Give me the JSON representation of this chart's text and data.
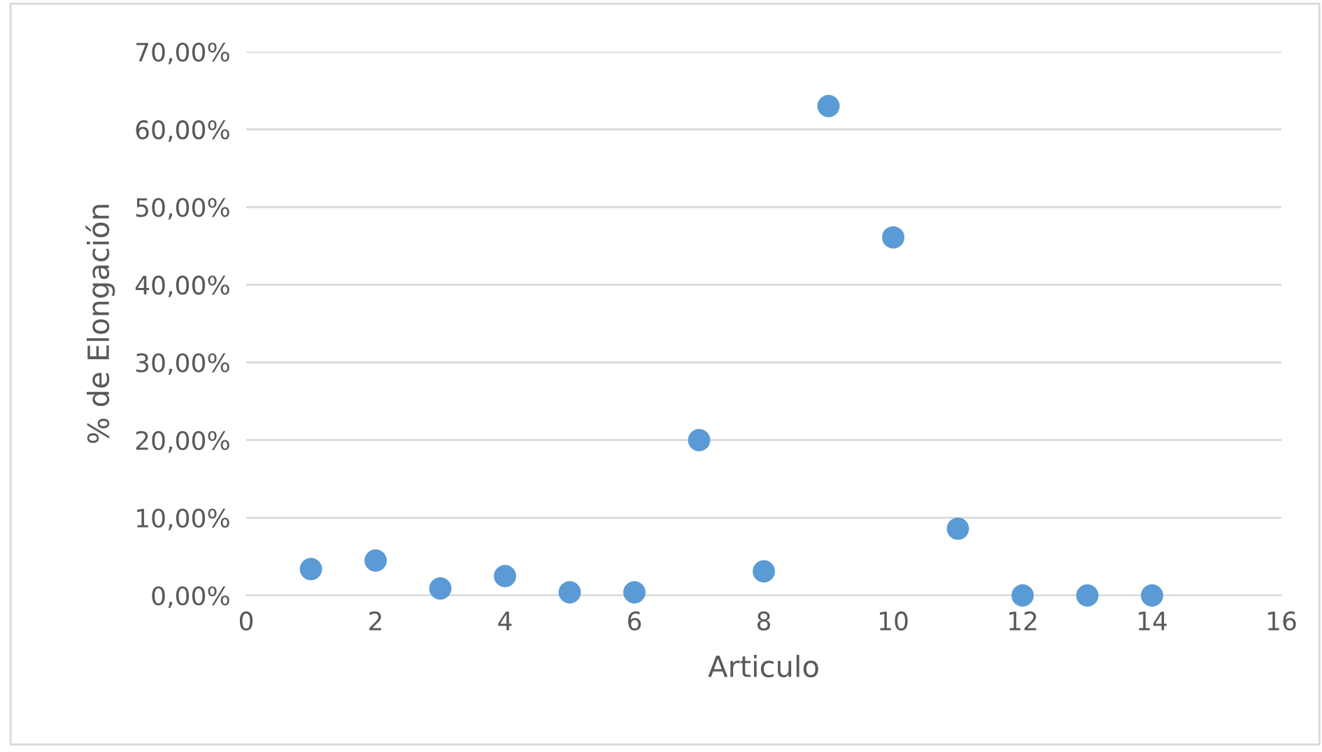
{
  "chart_data": {
    "type": "scatter",
    "xlabel": "Articulo",
    "ylabel": "% de Elongación",
    "x": [
      1,
      2,
      3,
      4,
      5,
      6,
      7,
      8,
      9,
      10,
      11,
      12,
      13,
      14
    ],
    "values": [
      3.4,
      4.5,
      0.9,
      2.5,
      0.4,
      0.4,
      20.0,
      3.1,
      63.0,
      46.1,
      8.6,
      0,
      0,
      0
    ],
    "color": "#5b9bd5",
    "marker": "circle",
    "grid": "y",
    "xlim": [
      0,
      16
    ],
    "xticks": [
      0,
      2,
      4,
      6,
      8,
      10,
      12,
      14,
      16
    ],
    "ylim": [
      0,
      70
    ],
    "yticks": [
      {
        "value": 0,
        "label": "0,00%"
      },
      {
        "value": 10,
        "label": "10,00%"
      },
      {
        "value": 20,
        "label": "20,00%"
      },
      {
        "value": 30,
        "label": "30,00%"
      },
      {
        "value": 40,
        "label": "40,00%"
      },
      {
        "value": 50,
        "label": "50,00%"
      },
      {
        "value": 60,
        "label": "60,00%"
      },
      {
        "value": 70,
        "label": "70,00%"
      }
    ]
  }
}
